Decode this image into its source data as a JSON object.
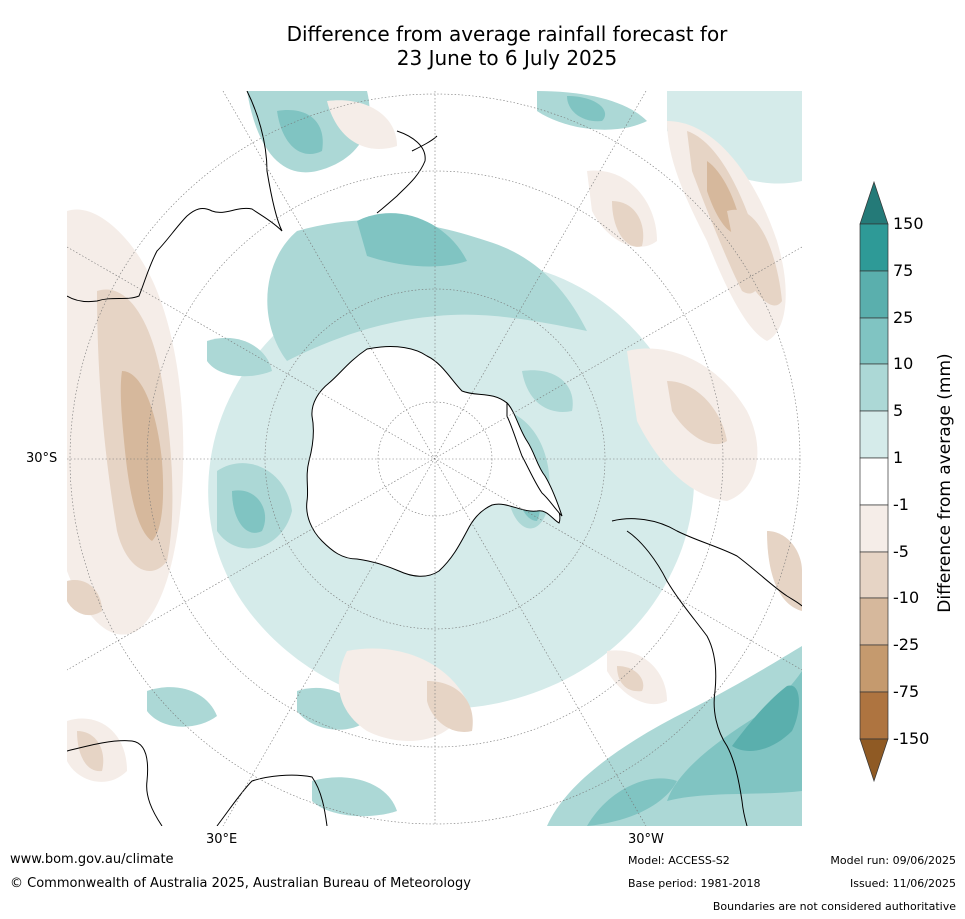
{
  "title": {
    "line1": "Difference from average rainfall forecast for",
    "line2": "23 June to 6 July 2025"
  },
  "map": {
    "projection": "south-polar-stereographic",
    "labels": {
      "lat_30s": "30°S",
      "lon_30e": "30°E",
      "lon_30w": "30°W"
    }
  },
  "colorbar": {
    "title": "Difference from average (mm)",
    "ticks": [
      "150",
      "75",
      "25",
      "10",
      "5",
      "1",
      "-1",
      "-5",
      "-10",
      "-25",
      "-75",
      "-150"
    ],
    "colors": {
      "over": "#247a78",
      "b150_75": "#2e9a97",
      "b75_25": "#5aafad",
      "b25_10": "#80c4c2",
      "b10_5": "#acd8d6",
      "b5_1": "#d5ebea",
      "b1_m1": "#ffffff",
      "bm1_m5": "#f5ede8",
      "bm5_m10": "#e6d4c5",
      "bm10_m25": "#d6b89c",
      "bm25_m75": "#c59a6e",
      "bm75_m150": "#ae7440",
      "under": "#8f5a24"
    }
  },
  "footer": {
    "url": "www.bom.gov.au/climate",
    "copyright": "© Commonwealth of Australia 2025, Australian Bureau of Meteorology",
    "model": "Model: ACCESS-S2",
    "base_period": "Base period: 1981-2018",
    "model_run": "Model run: 09/06/2025",
    "issued": "Issued: 11/06/2025",
    "boundaries": "Boundaries are not considered authoritative"
  }
}
